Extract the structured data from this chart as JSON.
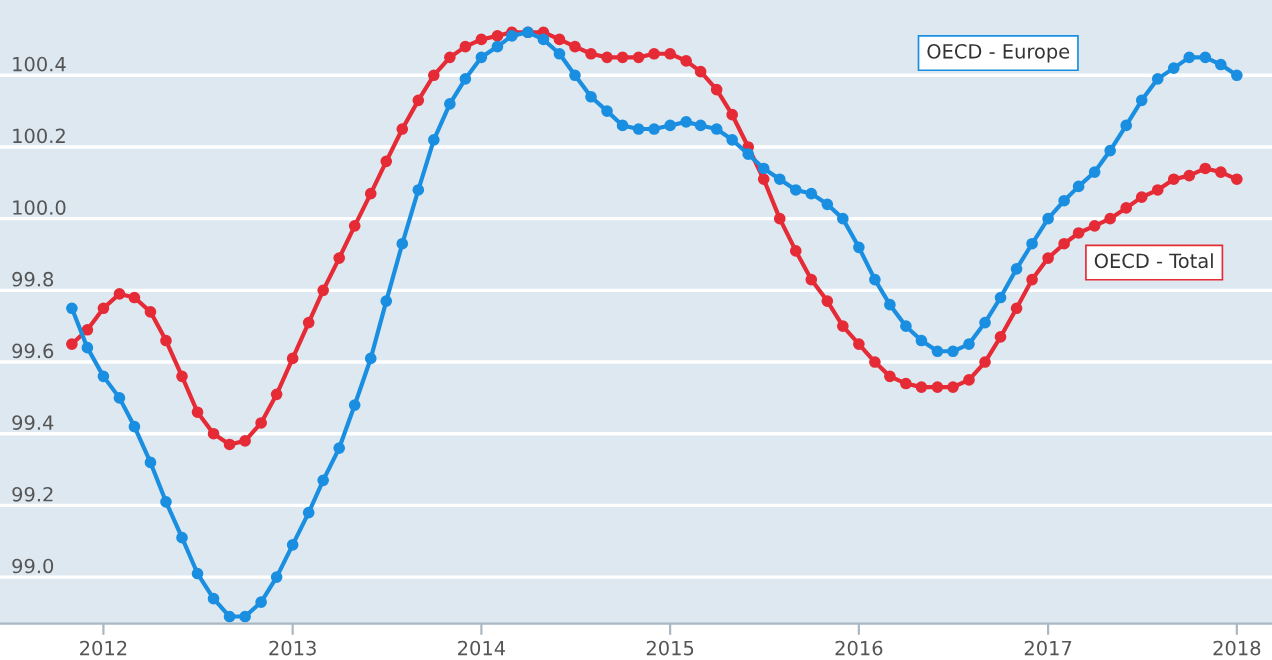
{
  "chart_data": {
    "type": "line",
    "x": [
      "2011-11",
      "2011-12",
      "2012-01",
      "2012-02",
      "2012-03",
      "2012-04",
      "2012-05",
      "2012-06",
      "2012-07",
      "2012-08",
      "2012-09",
      "2012-10",
      "2012-11",
      "2012-12",
      "2013-01",
      "2013-02",
      "2013-03",
      "2013-04",
      "2013-05",
      "2013-06",
      "2013-07",
      "2013-08",
      "2013-09",
      "2013-10",
      "2013-11",
      "2013-12",
      "2014-01",
      "2014-02",
      "2014-03",
      "2014-04",
      "2014-05",
      "2014-06",
      "2014-07",
      "2014-08",
      "2014-09",
      "2014-10",
      "2014-11",
      "2014-12",
      "2015-01",
      "2015-02",
      "2015-03",
      "2015-04",
      "2015-05",
      "2015-06",
      "2015-07",
      "2015-08",
      "2015-09",
      "2015-10",
      "2015-11",
      "2015-12",
      "2016-01",
      "2016-02",
      "2016-03",
      "2016-04",
      "2016-05",
      "2016-06",
      "2016-07",
      "2016-08",
      "2016-09",
      "2016-10",
      "2016-11",
      "2016-12",
      "2017-01",
      "2017-02",
      "2017-03",
      "2017-04",
      "2017-05",
      "2017-06",
      "2017-07",
      "2017-08",
      "2017-09",
      "2017-10",
      "2017-11",
      "2017-12",
      "2018-01"
    ],
    "series": [
      {
        "name": "OECD - Total",
        "color": "#e52b36",
        "values": [
          99.65,
          99.69,
          99.75,
          99.79,
          99.78,
          99.74,
          99.66,
          99.56,
          99.46,
          99.4,
          99.37,
          99.38,
          99.43,
          99.51,
          99.61,
          99.71,
          99.8,
          99.89,
          99.98,
          100.07,
          100.16,
          100.25,
          100.33,
          100.4,
          100.45,
          100.48,
          100.5,
          100.51,
          100.52,
          100.52,
          100.52,
          100.5,
          100.48,
          100.46,
          100.45,
          100.45,
          100.45,
          100.46,
          100.46,
          100.44,
          100.41,
          100.36,
          100.29,
          100.2,
          100.11,
          100.0,
          99.91,
          99.83,
          99.77,
          99.7,
          99.65,
          99.6,
          99.56,
          99.54,
          99.53,
          99.53,
          99.53,
          99.55,
          99.6,
          99.67,
          99.75,
          99.83,
          99.89,
          99.93,
          99.96,
          99.98,
          100.0,
          100.03,
          100.06,
          100.08,
          100.11,
          100.12,
          100.14,
          100.13,
          100.11
        ]
      },
      {
        "name": "OECD - Europe",
        "color": "#1a8ee0",
        "values": [
          99.75,
          99.64,
          99.56,
          99.5,
          99.42,
          99.32,
          99.21,
          99.11,
          99.01,
          98.94,
          98.89,
          98.89,
          98.93,
          99.0,
          99.09,
          99.18,
          99.27,
          99.36,
          99.48,
          99.61,
          99.77,
          99.93,
          100.08,
          100.22,
          100.32,
          100.39,
          100.45,
          100.48,
          100.51,
          100.52,
          100.5,
          100.46,
          100.4,
          100.34,
          100.3,
          100.26,
          100.25,
          100.25,
          100.26,
          100.27,
          100.26,
          100.25,
          100.22,
          100.18,
          100.14,
          100.11,
          100.08,
          100.07,
          100.04,
          100.0,
          99.92,
          99.83,
          99.76,
          99.7,
          99.66,
          99.63,
          99.63,
          99.65,
          99.71,
          99.78,
          99.86,
          99.93,
          100.0,
          100.05,
          100.09,
          100.13,
          100.19,
          100.26,
          100.33,
          100.39,
          100.42,
          100.45,
          100.45,
          100.43,
          100.4
        ]
      }
    ],
    "xlim": [
      "2011-06-15",
      "2018-03-10"
    ],
    "xticks": [
      {
        "value": "2012-01-01",
        "label": "2012"
      },
      {
        "value": "2013-01-01",
        "label": "2013"
      },
      {
        "value": "2014-01-01",
        "label": "2014"
      },
      {
        "value": "2015-01-01",
        "label": "2015"
      },
      {
        "value": "2016-01-01",
        "label": "2016"
      },
      {
        "value": "2017-01-01",
        "label": "2017"
      },
      {
        "value": "2018-01-01",
        "label": "2018"
      }
    ],
    "ylim": [
      98.87,
      100.61
    ],
    "yticks": [
      {
        "value": 99.0,
        "label": "99.0"
      },
      99.2,
      99.4,
      99.6,
      99.8,
      {
        "value": 100.0,
        "label": "100.0"
      },
      100.2,
      100.4
    ],
    "grid": "y",
    "legend": "right",
    "marker": "circle",
    "line_style": "solid"
  }
}
